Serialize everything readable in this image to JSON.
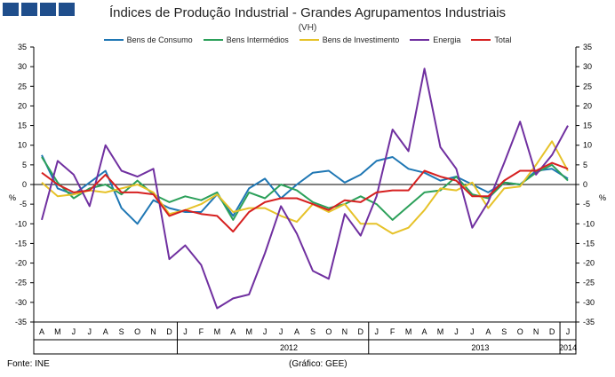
{
  "header": {
    "logo_colors": [
      "#1f4e8c",
      "#1f4e8c",
      "#1f4e8c",
      "#1f4e8c"
    ]
  },
  "footer": {
    "source": "Fonte: INE",
    "credit": "(Gráfico: GEE)"
  },
  "chart_data": {
    "type": "line",
    "title": "Índices de Produção Industrial - Grandes Agrupamentos Industriais",
    "subtitle": "(VH)",
    "ylabel_left": "%",
    "ylabel_right": "%",
    "ylim": [
      -35,
      35
    ],
    "yticks": [
      35,
      30,
      25,
      20,
      15,
      10,
      5,
      0,
      -5,
      -10,
      -15,
      -20,
      -25,
      -30,
      -35
    ],
    "legend_position": "top-center",
    "grid": false,
    "categories": [
      "A",
      "M",
      "J",
      "J",
      "A",
      "S",
      "O",
      "N",
      "D",
      "J",
      "F",
      "M",
      "A",
      "M",
      "J",
      "J",
      "A",
      "S",
      "O",
      "N",
      "D",
      "J",
      "F",
      "M",
      "A",
      "M",
      "J",
      "J",
      "A",
      "S",
      "O",
      "N",
      "D",
      "J"
    ],
    "year_labels": [
      {
        "label": "2012",
        "center_index": 15.5
      },
      {
        "label": "2013",
        "center_index": 27.5
      },
      {
        "label": "2014",
        "center_index": 33
      }
    ],
    "year_separators": [
      8.5,
      20.5,
      32.5
    ],
    "series": [
      {
        "name": "Bens de Consumo",
        "color": "#1f77b4",
        "values": [
          7.5,
          -1.0,
          -2.5,
          0.5,
          3.5,
          -6.0,
          -10.0,
          -4.0,
          -6.0,
          -7.0,
          -7.0,
          -2.5,
          -8.0,
          -1.0,
          1.5,
          -3.5,
          0.0,
          3.0,
          3.5,
          0.5,
          2.5,
          6.0,
          7.0,
          4.0,
          3.0,
          1.0,
          2.0,
          0.0,
          -2.0,
          0.5,
          0.0,
          3.5,
          4.0,
          1.5
        ]
      },
      {
        "name": "Bens Intermédios",
        "color": "#2ca05a",
        "values": [
          7.0,
          0.5,
          -3.5,
          -1.0,
          0.0,
          -2.5,
          1.0,
          -2.5,
          -4.5,
          -3.0,
          -4.0,
          -2.0,
          -9.0,
          -2.0,
          -3.5,
          0.0,
          -1.5,
          -4.5,
          -6.0,
          -5.0,
          -3.0,
          -5.0,
          -9.0,
          -5.5,
          -2.0,
          -1.5,
          2.0,
          -2.5,
          -3.5,
          0.5,
          0.0,
          3.0,
          5.0,
          1.0
        ]
      },
      {
        "name": "Bens de Investimento",
        "color": "#e6c229",
        "values": [
          0.5,
          -3.0,
          -2.5,
          -1.5,
          -2.0,
          -1.0,
          0.0,
          -2.0,
          -7.5,
          -6.5,
          -5.0,
          -2.5,
          -7.0,
          -6.0,
          -6.0,
          -8.0,
          -9.5,
          -5.0,
          -7.0,
          -5.0,
          -10.0,
          -10.0,
          -12.5,
          -11.0,
          -6.5,
          -1.0,
          -1.5,
          0.5,
          -6.0,
          -1.0,
          -0.5,
          5.0,
          11.0,
          3.5
        ]
      },
      {
        "name": "Energia",
        "color": "#7030a0",
        "values": [
          -9.0,
          6.0,
          2.5,
          -5.5,
          10.0,
          3.5,
          2.0,
          4.0,
          -19.0,
          -15.5,
          -20.5,
          -31.5,
          -29.0,
          -28.0,
          -17.5,
          -5.5,
          -12.5,
          -22.0,
          -24.0,
          -7.5,
          -13.0,
          -3.0,
          14.0,
          8.5,
          29.5,
          9.5,
          4.0,
          -11.0,
          -4.5,
          5.5,
          16.0,
          2.5,
          7.5,
          15.0
        ]
      },
      {
        "name": "Total",
        "color": "#d62020",
        "values": [
          3.0,
          0.0,
          -2.0,
          -1.5,
          2.5,
          -2.0,
          -2.0,
          -2.5,
          -8.0,
          -6.5,
          -7.5,
          -8.0,
          -12.0,
          -7.0,
          -4.5,
          -3.5,
          -3.5,
          -5.0,
          -6.5,
          -4.0,
          -4.5,
          -2.0,
          -1.5,
          -1.5,
          3.5,
          2.0,
          1.0,
          -3.0,
          -3.0,
          1.0,
          3.5,
          3.5,
          5.5,
          4.0
        ]
      }
    ]
  }
}
